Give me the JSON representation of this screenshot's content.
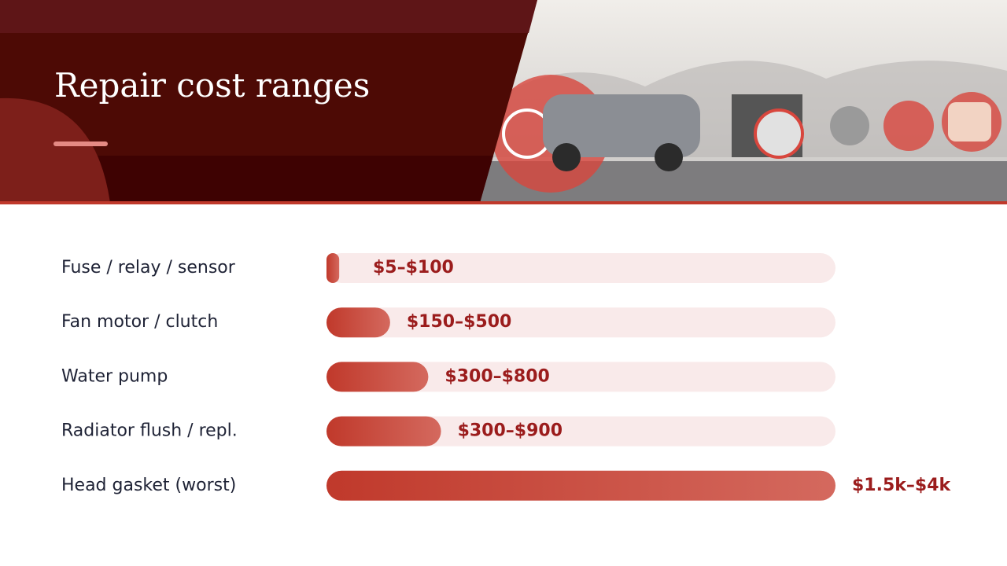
{
  "chart_data": {
    "type": "bar",
    "orientation": "horizontal",
    "title": "Repair cost ranges",
    "categories": [
      "Fuse / relay / sensor",
      "Fan motor / clutch",
      "Water pump",
      "Radiator flush / repl.",
      "Head gasket (worst)"
    ],
    "values": [
      100,
      500,
      800,
      900,
      4000
    ],
    "value_labels": [
      "$5–$100",
      "$150–$500",
      "$300–$800",
      "$300–$900",
      "$1.5k–$4k"
    ],
    "color": "#c0392b",
    "xlim": [
      0,
      4000
    ],
    "grid": false
  }
}
